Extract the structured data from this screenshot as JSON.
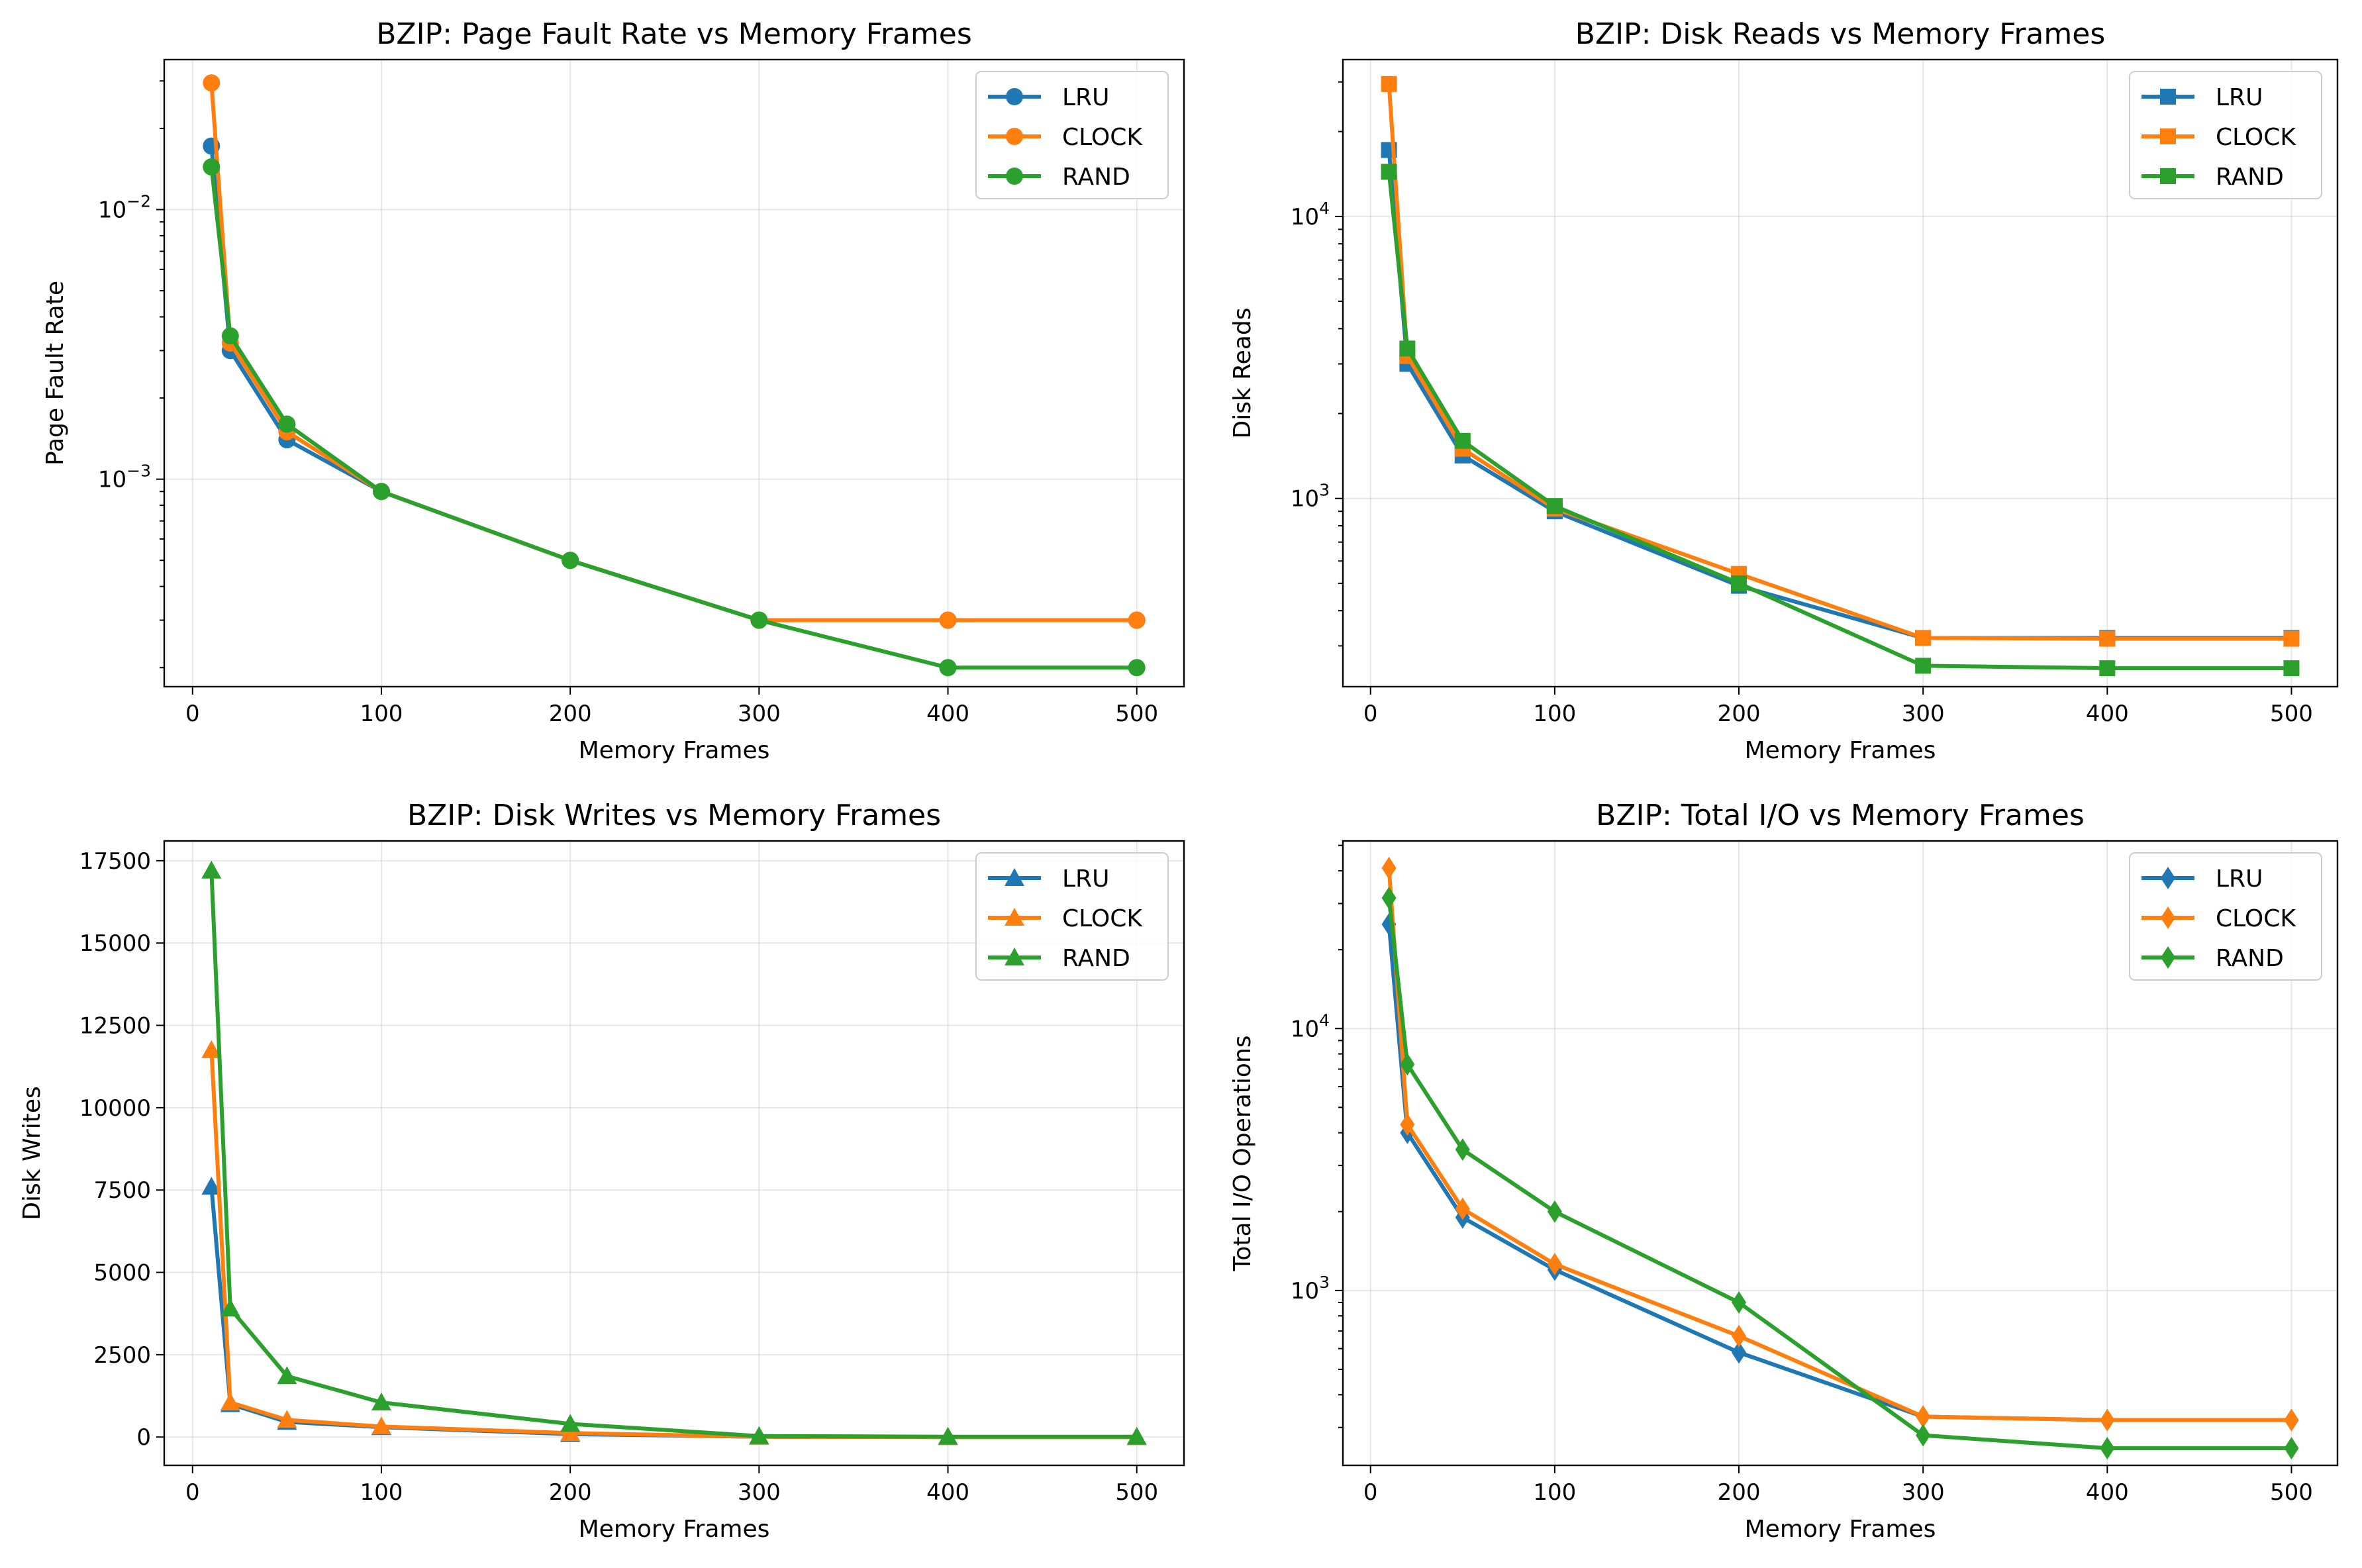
{
  "colors": {
    "LRU": "#1f77b4",
    "CLOCK": "#ff7f0e",
    "RAND": "#2ca02c"
  },
  "chart_data": [
    {
      "type": "line",
      "title": "BZIP: Page Fault Rate vs Memory Frames",
      "xlabel": "Memory Frames",
      "ylabel": "Page Fault Rate",
      "yscale": "log",
      "marker": "circle",
      "x": [
        10,
        20,
        50,
        100,
        200,
        300,
        400,
        500
      ],
      "xlim": [
        -15,
        525
      ],
      "xticks": [
        0,
        100,
        200,
        300,
        400,
        500
      ],
      "ylim": [
        0.00017,
        0.036
      ],
      "yticks": [
        {
          "value": 0.01,
          "label": "10",
          "exp": "−2"
        },
        {
          "value": 0.001,
          "label": "10",
          "exp": "−3"
        }
      ],
      "grid": true,
      "legend": "top-right",
      "series": [
        {
          "name": "LRU",
          "values": [
            0.0172,
            0.003,
            0.0014,
            0.0009,
            0.0005,
            0.0003,
            0.0003,
            0.0003
          ]
        },
        {
          "name": "CLOCK",
          "values": [
            0.0295,
            0.0032,
            0.0015,
            0.0009,
            0.0005,
            0.0003,
            0.0003,
            0.0003
          ]
        },
        {
          "name": "RAND",
          "values": [
            0.0144,
            0.0034,
            0.0016,
            0.0009,
            0.0005,
            0.0003,
            0.0002,
            0.0002
          ]
        }
      ]
    },
    {
      "type": "line",
      "title": "BZIP: Disk Reads vs Memory Frames",
      "xlabel": "Memory Frames",
      "ylabel": "Disk Reads",
      "yscale": "log",
      "marker": "square",
      "x": [
        10,
        20,
        50,
        100,
        200,
        300,
        400,
        500
      ],
      "xlim": [
        -15,
        525
      ],
      "xticks": [
        0,
        100,
        200,
        300,
        400,
        500
      ],
      "ylim": [
        215,
        36000
      ],
      "yticks": [
        {
          "value": 10000,
          "label": "10",
          "exp": "4"
        },
        {
          "value": 1000,
          "label": "10",
          "exp": "3"
        }
      ],
      "grid": true,
      "legend": "top-right",
      "series": [
        {
          "name": "LRU",
          "values": [
            17200,
            3000,
            1420,
            900,
            490,
            320,
            320,
            320
          ]
        },
        {
          "name": "CLOCK",
          "values": [
            29500,
            3200,
            1500,
            920,
            540,
            320,
            318,
            318
          ]
        },
        {
          "name": "RAND",
          "values": [
            14400,
            3400,
            1600,
            940,
            500,
            255,
            250,
            250
          ]
        }
      ]
    },
    {
      "type": "line",
      "title": "BZIP: Disk Writes vs Memory Frames",
      "xlabel": "Memory Frames",
      "ylabel": "Disk Writes",
      "yscale": "linear",
      "marker": "triangle",
      "x": [
        10,
        20,
        50,
        100,
        200,
        300,
        400,
        500
      ],
      "xlim": [
        -15,
        525
      ],
      "xticks": [
        0,
        100,
        200,
        300,
        400,
        500
      ],
      "ylim": [
        -860,
        18100
      ],
      "yticks": [
        {
          "value": 0,
          "label": "0"
        },
        {
          "value": 2500,
          "label": "2500"
        },
        {
          "value": 5000,
          "label": "5000"
        },
        {
          "value": 7500,
          "label": "7500"
        },
        {
          "value": 10000,
          "label": "10000"
        },
        {
          "value": 12500,
          "label": "12500"
        },
        {
          "value": 15000,
          "label": "15000"
        },
        {
          "value": 17500,
          "label": "17500"
        }
      ],
      "grid": true,
      "legend": "top-right",
      "series": [
        {
          "name": "LRU",
          "values": [
            7600,
            1000,
            460,
            300,
            90,
            10,
            0,
            0
          ]
        },
        {
          "name": "CLOCK",
          "values": [
            11750,
            1050,
            520,
            320,
            120,
            10,
            0,
            0
          ]
        },
        {
          "name": "RAND",
          "values": [
            17200,
            3900,
            1850,
            1050,
            400,
            30,
            10,
            10
          ]
        }
      ]
    },
    {
      "type": "line",
      "title": "BZIP: Total I/O vs Memory Frames",
      "xlabel": "Memory Frames",
      "ylabel": "Total I/O Operations",
      "yscale": "log",
      "marker": "diamond",
      "x": [
        10,
        20,
        50,
        100,
        200,
        300,
        400,
        500
      ],
      "xlim": [
        -15,
        525
      ],
      "xticks": [
        0,
        100,
        200,
        300,
        400,
        500
      ],
      "ylim": [
        215,
        52000
      ],
      "yticks": [
        {
          "value": 10000,
          "label": "10",
          "exp": "4"
        },
        {
          "value": 1000,
          "label": "10",
          "exp": "3"
        }
      ],
      "grid": true,
      "legend": "top-right",
      "series": [
        {
          "name": "LRU",
          "values": [
            25000,
            4000,
            1900,
            1200,
            580,
            330,
            320,
            320
          ]
        },
        {
          "name": "CLOCK",
          "values": [
            41000,
            4300,
            2050,
            1260,
            670,
            330,
            320,
            320
          ]
        },
        {
          "name": "RAND",
          "values": [
            31500,
            7300,
            3450,
            2000,
            900,
            280,
            250,
            250
          ]
        }
      ]
    }
  ]
}
